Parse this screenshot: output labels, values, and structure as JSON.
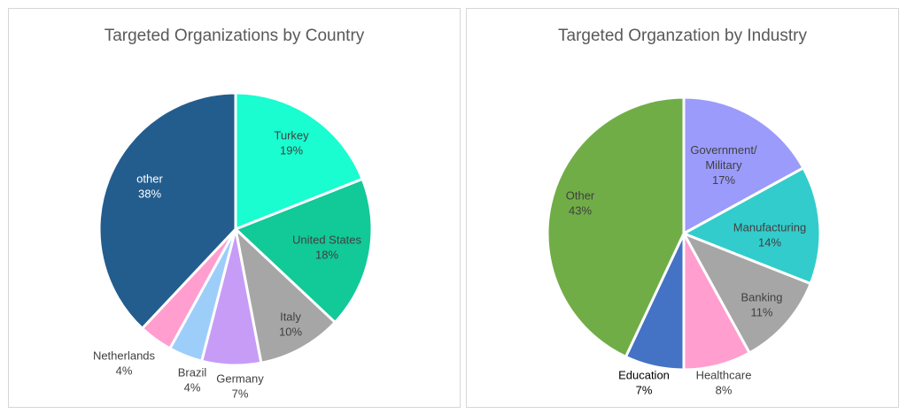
{
  "chart_data": [
    {
      "type": "pie",
      "title": "Targeted Organizations by Country",
      "slices": [
        {
          "label": "Turkey",
          "value": 19,
          "display": "19%",
          "color": "#19FDD0"
        },
        {
          "label": "United States",
          "value": 18,
          "display": "18%",
          "color": "#12C998"
        },
        {
          "label": "Italy",
          "value": 10,
          "display": "10%",
          "color": "#A6A6A6"
        },
        {
          "label": "Germany",
          "value": 7,
          "display": "7%",
          "color": "#C79CF6"
        },
        {
          "label": "Brazil",
          "value": 4,
          "display": "4%",
          "color": "#9DCEF9"
        },
        {
          "label": "Netherlands",
          "value": 4,
          "display": "4%",
          "color": "#FF9ECF"
        },
        {
          "label": "other",
          "value": 38,
          "display": "38%",
          "color": "#235D8E"
        }
      ]
    },
    {
      "type": "pie",
      "title": "Targeted Organzation by Industry",
      "slices": [
        {
          "label": "Government/ Military",
          "value": 17,
          "display": "17%",
          "color": "#9B9BFB"
        },
        {
          "label": "Manufacturing",
          "value": 14,
          "display": "14%",
          "color": "#33CCCC"
        },
        {
          "label": "Banking",
          "value": 11,
          "display": "11%",
          "color": "#A6A6A6"
        },
        {
          "label": "Healthcare",
          "value": 8,
          "display": "8%",
          "color": "#FF9ECF"
        },
        {
          "label": "Education",
          "value": 7,
          "display": "7%",
          "color": "#4472C4"
        },
        {
          "label": "Other",
          "value": 43,
          "display": "43%",
          "color": "#70AD47"
        }
      ]
    }
  ]
}
